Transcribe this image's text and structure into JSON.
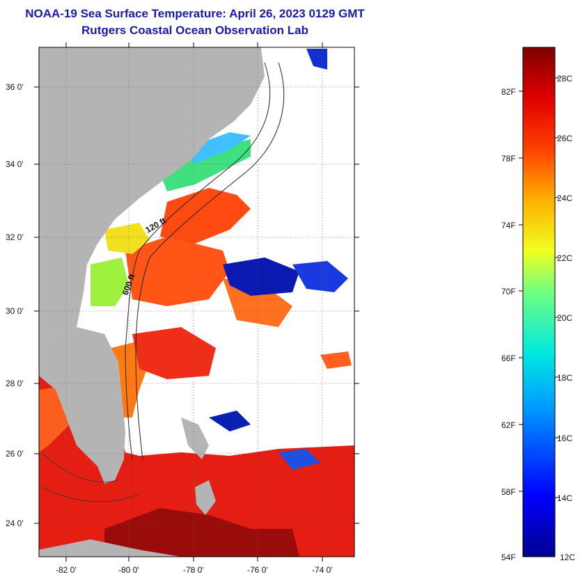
{
  "header": {
    "title": "NOAA-19 Sea Surface Temperature:  April 26, 2023 0129 GMT",
    "subtitle": "Rutgers Coastal Ocean Observation Lab"
  },
  "map": {
    "lat_ticks": [
      "36 0'",
      "34 0'",
      "32 0'",
      "30 0'",
      "28 0'",
      "26 0'",
      "24 0'"
    ],
    "lon_ticks": [
      "-82 0'",
      "-80 0'",
      "-78 0'",
      "-76 0'",
      "-74 0'"
    ],
    "isobath_labels": [
      "120 ft",
      "600 ft"
    ],
    "land_color": "#b4b4b4",
    "cloud_color": "#ffffff"
  },
  "colorbar": {
    "fahrenheit_labels": [
      "82F",
      "78F",
      "74F",
      "70F",
      "66F",
      "62F",
      "58F",
      "54F"
    ],
    "celsius_labels": [
      "28C",
      "26C",
      "24C",
      "22C",
      "20C",
      "18C",
      "16C",
      "14C",
      "12C"
    ]
  }
}
